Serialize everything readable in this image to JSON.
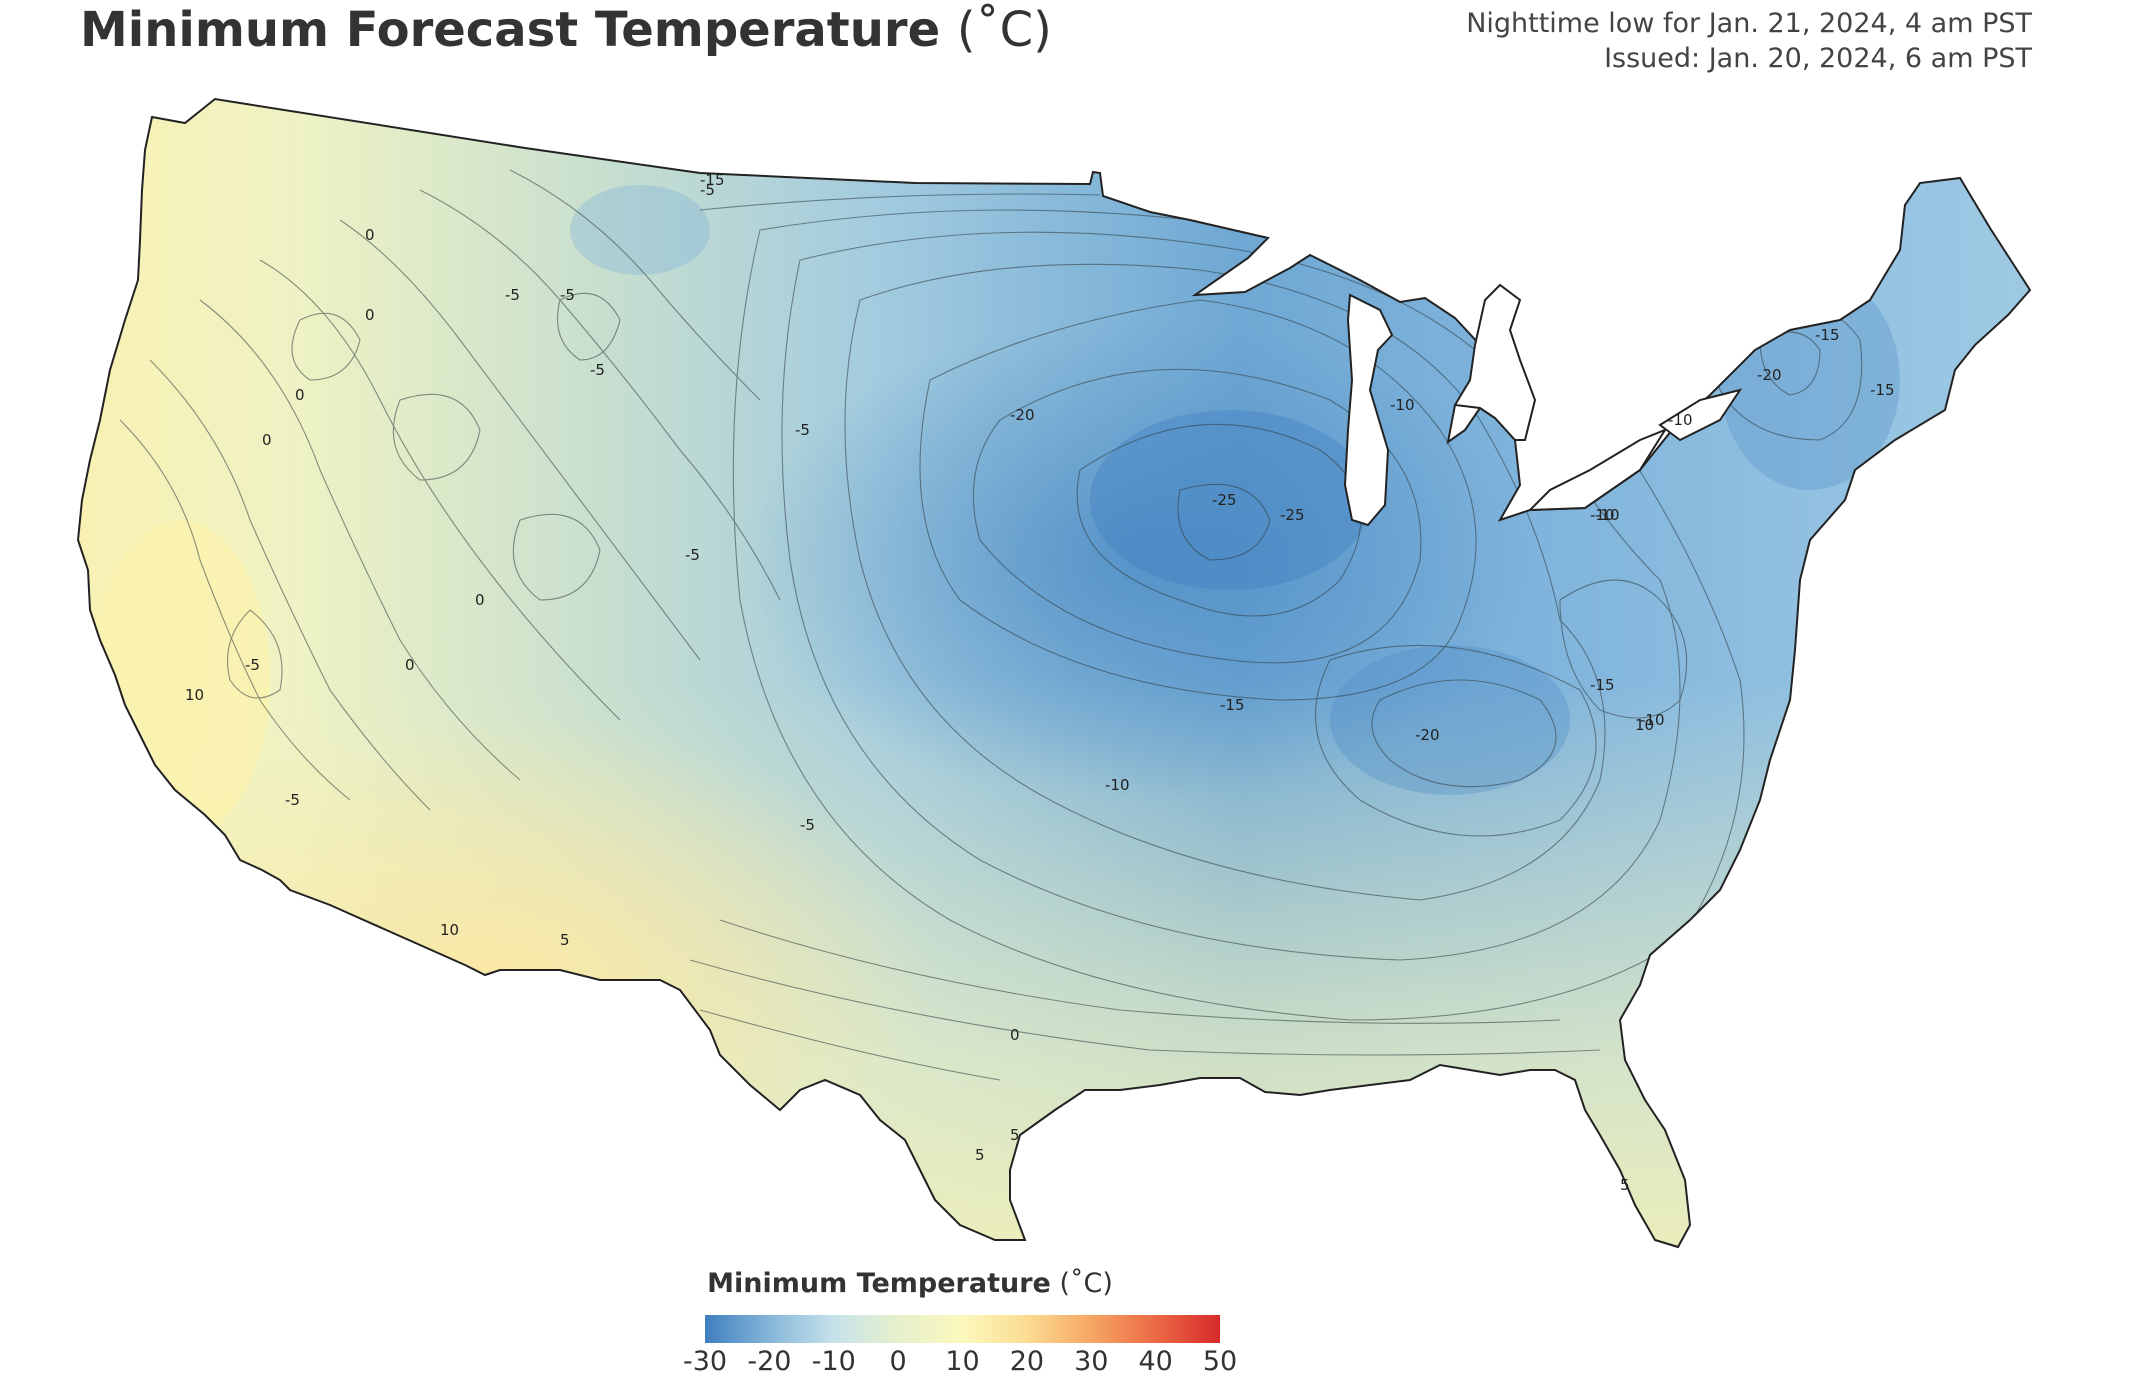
{
  "title": {
    "main": "Minimum Forecast Temperature",
    "unit": "(˚C)"
  },
  "meta": {
    "line1": "Nighttime low for Jan. 21, 2024, 4 am PST",
    "line2": "Issued: Jan. 20, 2024, 6 am PST"
  },
  "legend": {
    "title": "Minimum Temperature",
    "unit": "(˚C)",
    "ticks": [
      "-30",
      "-20",
      "-10",
      "0",
      "10",
      "20",
      "30",
      "40",
      "50"
    ],
    "colors": [
      "#3f7fbf",
      "#85b6d9",
      "#c6e2ea",
      "#e6f0cc",
      "#fbf8bc",
      "#fbdc92",
      "#f6a663",
      "#eb6a45",
      "#d62a2a"
    ]
  },
  "contour_labels": [
    "-5",
    "-25",
    "-25",
    "-20",
    "-20",
    "-20",
    "-15",
    "-15",
    "-15",
    "-15",
    "-15",
    "-10",
    "-10",
    "-10",
    "-10",
    "-10",
    "0",
    "0",
    "0",
    "0",
    "0",
    "0",
    "0",
    "-5",
    "-5",
    "-5",
    "-5",
    "-5",
    "-5",
    "-5",
    "-5",
    "5",
    "5",
    "5",
    "5",
    "10",
    "10",
    "10",
    "-10"
  ]
}
